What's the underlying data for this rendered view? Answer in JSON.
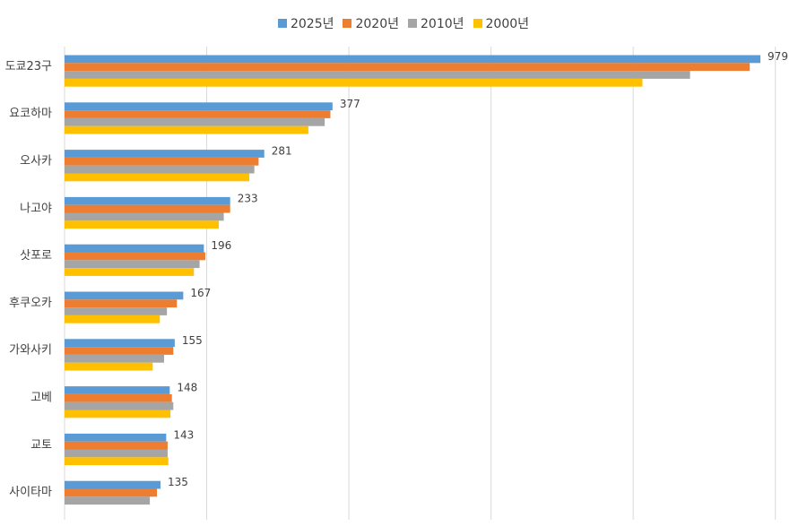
{
  "chart_data": {
    "type": "bar",
    "orientation": "horizontal",
    "title": "",
    "xlabel": "",
    "ylabel": "",
    "xlim": [
      0,
      1000
    ],
    "grid": true,
    "legend_position": "top",
    "categories": [
      "도쿄23구",
      "요코하마",
      "오사카",
      "나고야",
      "삿포로",
      "후쿠오카",
      "가와사키",
      "고베",
      "교토",
      "사이타마"
    ],
    "series": [
      {
        "name": "2025년",
        "color": "#5b9bd5",
        "values": [
          979,
          377,
          281,
          233,
          196,
          167,
          155,
          148,
          143,
          135
        ]
      },
      {
        "name": "2020년",
        "color": "#ed7d31",
        "values": [
          964,
          374,
          273,
          233,
          198,
          158,
          153,
          151,
          145,
          130
        ]
      },
      {
        "name": "2010년",
        "color": "#a5a5a5",
        "values": [
          880,
          366,
          267,
          224,
          190,
          144,
          140,
          153,
          145,
          120
        ]
      },
      {
        "name": "2000년",
        "color": "#ffc000",
        "values": [
          813,
          343,
          260,
          217,
          182,
          134,
          124,
          149,
          146,
          0
        ]
      }
    ],
    "data_labels": [
      979,
      377,
      281,
      233,
      196,
      167,
      155,
      148,
      143,
      135
    ]
  }
}
